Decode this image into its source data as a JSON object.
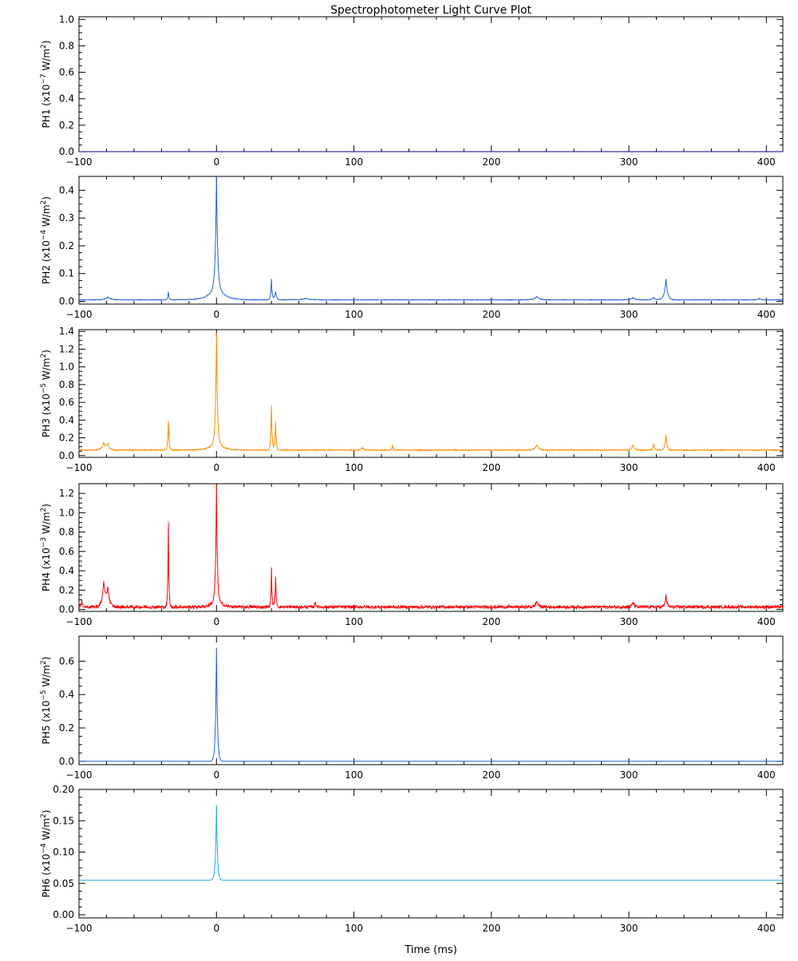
{
  "chart_data": {
    "type": "line",
    "title": "Spectrophotometer Light Curve Plot",
    "xlabel": "Time (ms)",
    "xlim": [
      -100,
      412
    ],
    "xticks": [
      -100,
      0,
      100,
      200,
      300,
      400
    ],
    "panels": [
      {
        "name": "PH1",
        "unit_prefix": "(x10",
        "exponent": "−7",
        "unit_suffix": " W/m",
        "unit_power": "2",
        "unit_close": ")",
        "color": "#000080",
        "ylim": [
          0,
          1.02
        ],
        "yticks": [
          "0.0",
          "0.2",
          "0.4",
          "0.6",
          "0.8",
          "1.0"
        ],
        "baseline": 0.0,
        "noise": 0.0,
        "spikes": []
      },
      {
        "name": "PH2",
        "unit_prefix": "(x10",
        "exponent": "−4",
        "unit_suffix": " W/m",
        "unit_power": "2",
        "unit_close": ")",
        "color": "#1f5fd6",
        "ylim": [
          -0.01,
          0.45
        ],
        "yticks": [
          "0.0",
          "0.1",
          "0.2",
          "0.3",
          "0.4"
        ],
        "baseline": 0.005,
        "noise": 0.002,
        "spikes": [
          {
            "t": -79,
            "a": 0.01,
            "w": 2
          },
          {
            "t": -35,
            "a": 0.028,
            "w": 0.5
          },
          {
            "t": 0,
            "a": 0.39,
            "w": 0.8
          },
          {
            "t": 0,
            "a": 0.06,
            "w": 5
          },
          {
            "t": 40,
            "a": 0.075,
            "w": 0.5
          },
          {
            "t": 43,
            "a": 0.03,
            "w": 0.8
          },
          {
            "t": 65,
            "a": 0.005,
            "w": 3
          },
          {
            "t": 233,
            "a": 0.012,
            "w": 2
          },
          {
            "t": 303,
            "a": 0.008,
            "w": 1.5
          },
          {
            "t": 318,
            "a": 0.01,
            "w": 1
          },
          {
            "t": 327,
            "a": 0.075,
            "w": 1.2
          },
          {
            "t": 395,
            "a": 0.005,
            "w": 1
          }
        ]
      },
      {
        "name": "PH3",
        "unit_prefix": "(x10",
        "exponent": "−5",
        "unit_suffix": " W/m",
        "unit_power": "2",
        "unit_close": ")",
        "color": "#ff8c00",
        "ylim": [
          -0.02,
          1.42
        ],
        "yticks": [
          "0.0",
          "0.2",
          "0.4",
          "0.6",
          "0.8",
          "1.0",
          "1.2",
          "1.4"
        ],
        "baseline": 0.06,
        "noise": 0.01,
        "spikes": [
          {
            "t": -82,
            "a": 0.08,
            "w": 1.5
          },
          {
            "t": -79,
            "a": 0.07,
            "w": 1.2
          },
          {
            "t": -35,
            "a": 0.33,
            "w": 0.5
          },
          {
            "t": 0,
            "a": 1.2,
            "w": 0.7
          },
          {
            "t": 0,
            "a": 0.12,
            "w": 4
          },
          {
            "t": 40,
            "a": 0.5,
            "w": 0.5
          },
          {
            "t": 43,
            "a": 0.32,
            "w": 0.5
          },
          {
            "t": 106,
            "a": 0.03,
            "w": 1
          },
          {
            "t": 128,
            "a": 0.06,
            "w": 0.5
          },
          {
            "t": 233,
            "a": 0.06,
            "w": 1.5
          },
          {
            "t": 303,
            "a": 0.06,
            "w": 1
          },
          {
            "t": 318,
            "a": 0.07,
            "w": 0.6
          },
          {
            "t": 327,
            "a": 0.17,
            "w": 0.8
          }
        ]
      },
      {
        "name": "PH4",
        "unit_prefix": "(x10",
        "exponent": "−3",
        "unit_suffix": " W/m",
        "unit_power": "2",
        "unit_close": ")",
        "color": "#ff0000",
        "ylim": [
          -0.02,
          1.3
        ],
        "yticks": [
          "0.0",
          "0.2",
          "0.4",
          "0.6",
          "0.8",
          "1.0",
          "1.2"
        ],
        "baseline": 0.02,
        "noise": 0.03,
        "spikes": [
          {
            "t": -98,
            "a": 0.06,
            "w": 0.8
          },
          {
            "t": -82,
            "a": 0.26,
            "w": 1.2
          },
          {
            "t": -79,
            "a": 0.2,
            "w": 1.2
          },
          {
            "t": -35,
            "a": 0.87,
            "w": 0.4
          },
          {
            "t": 0,
            "a": 1.15,
            "w": 0.6
          },
          {
            "t": 0,
            "a": 0.12,
            "w": 3
          },
          {
            "t": 40,
            "a": 0.4,
            "w": 0.4
          },
          {
            "t": 43,
            "a": 0.3,
            "w": 0.5
          },
          {
            "t": 72,
            "a": 0.06,
            "w": 0.5
          },
          {
            "t": 233,
            "a": 0.06,
            "w": 1.2
          },
          {
            "t": 303,
            "a": 0.05,
            "w": 1
          },
          {
            "t": 327,
            "a": 0.12,
            "w": 0.8
          }
        ]
      },
      {
        "name": "PH5",
        "unit_prefix": "(x10",
        "exponent": "−5",
        "unit_suffix": " W/m",
        "unit_power": "2",
        "unit_close": ")",
        "color": "#1f5fd6",
        "ylim": [
          -0.02,
          0.75
        ],
        "yticks": [
          "0.0",
          "0.2",
          "0.4",
          "0.6"
        ],
        "baseline": 0.0,
        "noise": 0.0,
        "spikes": [
          {
            "t": 0,
            "a": 0.68,
            "w": 0.7
          }
        ]
      },
      {
        "name": "PH6",
        "unit_prefix": "(x10",
        "exponent": "−4",
        "unit_suffix": " W/m",
        "unit_power": "2",
        "unit_close": ")",
        "color": "#20a8e0",
        "ylim": [
          -0.005,
          0.2
        ],
        "yticks": [
          "0.00",
          "0.05",
          "0.10",
          "0.15",
          "0.20"
        ],
        "baseline": 0.055,
        "noise": 0.0,
        "spikes": [
          {
            "t": 0,
            "a": 0.12,
            "w": 0.7
          }
        ]
      }
    ]
  }
}
